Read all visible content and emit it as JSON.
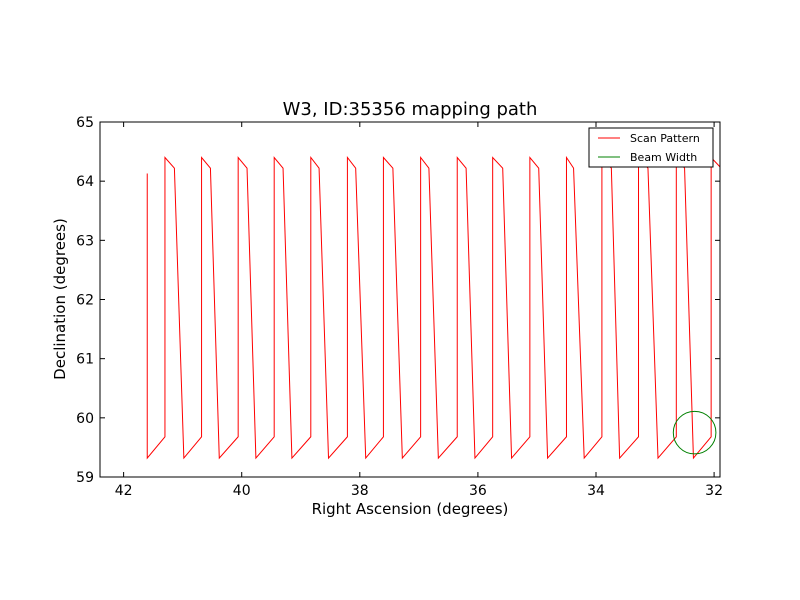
{
  "chart_data": {
    "type": "line",
    "title": "W3, ID:35356 mapping path",
    "xlabel": "Right Ascension (degrees)",
    "ylabel": "Declination (degrees)",
    "xlim": [
      42.4,
      31.9
    ],
    "ylim": [
      59,
      65
    ],
    "x_axis_inverted": true,
    "xticks": [
      42,
      40,
      38,
      36,
      34,
      32
    ],
    "yticks": [
      59,
      60,
      61,
      62,
      63,
      64,
      65
    ],
    "grid": false,
    "legend_position": "top-right",
    "series": [
      {
        "name": "Scan Pattern",
        "color": "#ff0000",
        "kind": "scan",
        "start": [
          41.6,
          64.13
        ],
        "turn_ra": [
          41.6,
          41.3,
          41.14,
          40.98,
          40.68,
          40.53,
          40.38,
          40.06,
          39.91,
          39.76,
          39.45,
          39.3,
          39.15,
          38.83,
          38.69,
          38.53,
          38.21,
          38.07,
          37.9,
          37.6,
          37.44,
          37.28,
          36.97,
          36.83,
          36.67,
          36.35,
          36.2,
          36.05,
          35.75,
          35.58,
          35.43,
          35.12,
          34.97,
          34.82,
          34.5,
          34.38,
          34.2,
          33.9,
          33.74,
          33.6,
          33.28,
          33.12,
          32.95,
          32.64,
          32.5,
          32.35,
          32.05,
          31.88
        ],
        "bottom_dec": 59.32,
        "top_dec": 64.4,
        "kink_offset": 0.18
      },
      {
        "name": "Beam Width",
        "color": "#008000",
        "kind": "circle",
        "center": [
          32.33,
          59.75
        ],
        "radius_dec": 0.36
      }
    ]
  }
}
